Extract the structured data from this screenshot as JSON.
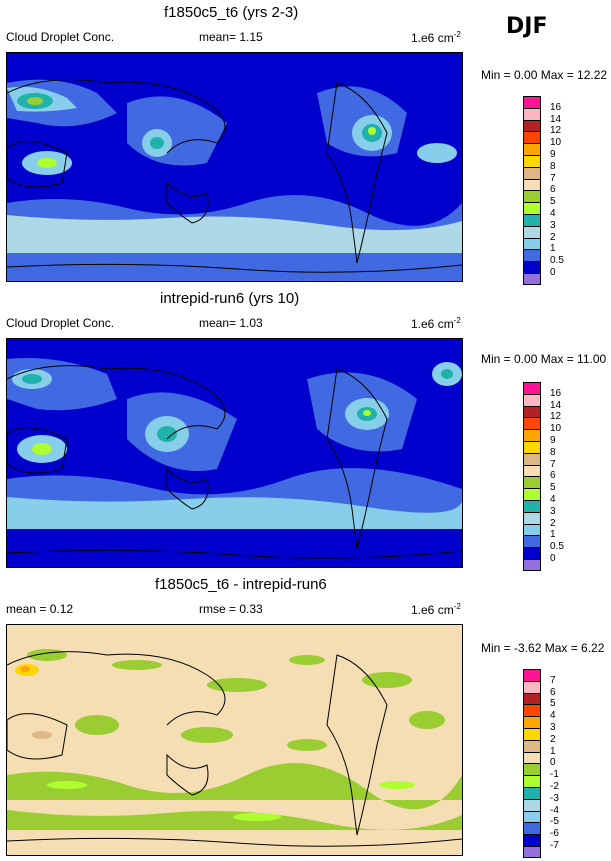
{
  "season": "DJF",
  "panels": [
    {
      "title": "f1850c5_t6 (yrs 2-3)",
      "left_label": "Cloud Droplet Conc.",
      "mid_label": "mean=   1.15",
      "unit_base": "1.e6 cm",
      "unit_exp": "-2",
      "minmax": "Min =  0.00 Max = 12.22",
      "scale": "abs",
      "colorbar_labels": [
        "16",
        "14",
        "12",
        "10",
        "9",
        "8",
        "7",
        "6",
        "5",
        "4",
        "3",
        "2",
        "1",
        "0.5",
        "0"
      ],
      "colorbar_colors": [
        "#ff1493",
        "#ffb6c1",
        "#b22222",
        "#ff4500",
        "#ffa500",
        "#ffd700",
        "#deb887",
        "#f5deb3",
        "#9acd32",
        "#adff2f",
        "#20b2aa",
        "#add8e6",
        "#87ceeb",
        "#4169e1",
        "#0000cd",
        "#9370db"
      ]
    },
    {
      "title": "intrepid-run6 (yrs 10)",
      "left_label": "Cloud Droplet Conc.",
      "mid_label": "mean=   1.03",
      "unit_base": "1.e6 cm",
      "unit_exp": "-2",
      "minmax": "Min =  0.00 Max = 11.00",
      "scale": "abs",
      "colorbar_labels": [
        "16",
        "14",
        "12",
        "10",
        "9",
        "8",
        "7",
        "6",
        "5",
        "4",
        "3",
        "2",
        "1",
        "0.5",
        "0"
      ],
      "colorbar_colors": [
        "#ff1493",
        "#ffb6c1",
        "#b22222",
        "#ff4500",
        "#ffa500",
        "#ffd700",
        "#deb887",
        "#f5deb3",
        "#9acd32",
        "#adff2f",
        "#20b2aa",
        "#add8e6",
        "#87ceeb",
        "#4169e1",
        "#0000cd",
        "#9370db"
      ]
    },
    {
      "title": "f1850c5_t6 - intrepid-run6",
      "left_label": "mean =   0.12",
      "mid_label": "rmse =   0.33",
      "unit_base": "1.e6 cm",
      "unit_exp": "-2",
      "minmax": "Min = -3.62 Max =  6.22",
      "scale": "diff",
      "colorbar_labels": [
        "7",
        "6",
        "5",
        "4",
        "3",
        "2",
        "1",
        "0",
        "-1",
        "-2",
        "-3",
        "-4",
        "-5",
        "-6",
        "-7"
      ],
      "colorbar_colors": [
        "#ff1493",
        "#ffb6c1",
        "#b22222",
        "#ff4500",
        "#ffa500",
        "#ffd700",
        "#deb887",
        "#f5deb3",
        "#9acd32",
        "#adff2f",
        "#20b2aa",
        "#add8e6",
        "#87ceeb",
        "#4169e1",
        "#0000cd",
        "#9370db"
      ]
    }
  ]
}
